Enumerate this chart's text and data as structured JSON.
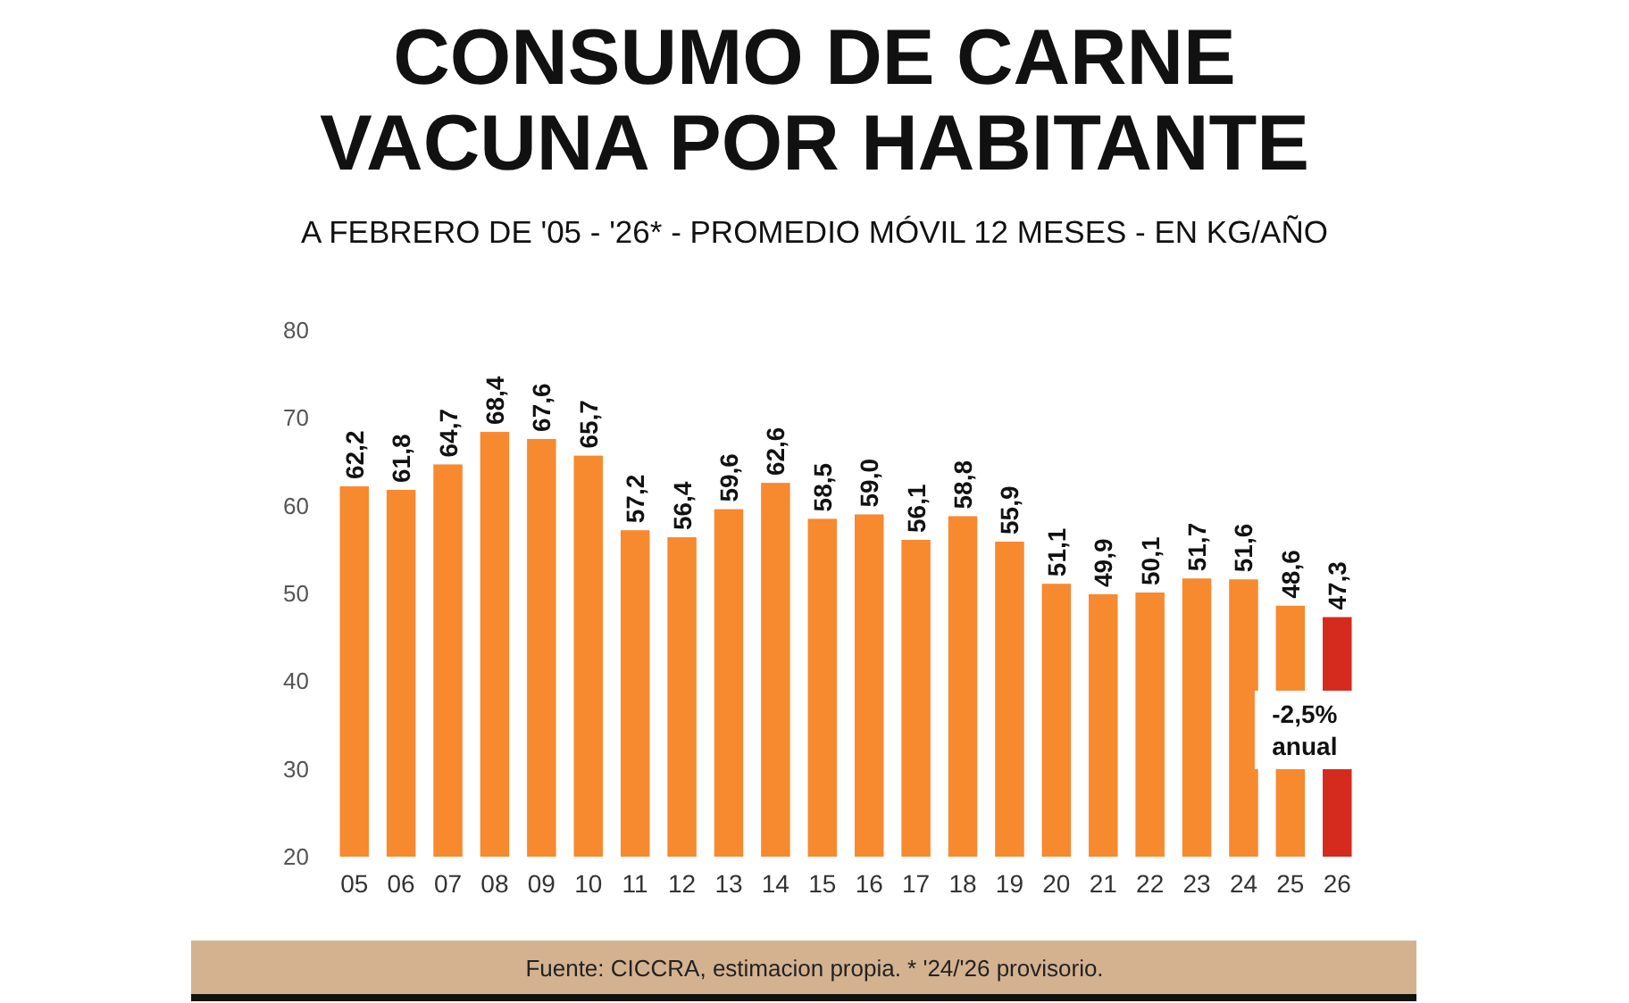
{
  "chart_data": {
    "type": "bar",
    "title": "CONSUMO DE CARNE\nVACUNA POR HABITANTE",
    "subtitle": "A FEBRERO DE '05 - '26* - PROMEDIO MÓVIL 12 MESES - EN KG/AÑO",
    "categories": [
      "05",
      "06",
      "07",
      "08",
      "09",
      "10",
      "11",
      "12",
      "13",
      "14",
      "15",
      "16",
      "17",
      "18",
      "19",
      "20",
      "21",
      "22",
      "23",
      "24",
      "25",
      "26"
    ],
    "values": [
      62.2,
      61.8,
      64.7,
      68.4,
      67.6,
      65.7,
      57.2,
      56.4,
      59.6,
      62.6,
      58.5,
      59.0,
      56.1,
      58.8,
      55.9,
      51.1,
      49.9,
      50.1,
      51.7,
      51.6,
      48.6,
      47.3
    ],
    "value_labels": [
      "62,2",
      "61,8",
      "64,7",
      "68,4",
      "67,6",
      "65,7",
      "57,2",
      "56,4",
      "59,6",
      "62,6",
      "58,5",
      "59,0",
      "56,1",
      "58,8",
      "55,9",
      "51,1",
      "49,9",
      "50,1",
      "51,7",
      "51,6",
      "48,6",
      "47,3"
    ],
    "colors": [
      "#f7892f",
      "#f7892f",
      "#f7892f",
      "#f7892f",
      "#f7892f",
      "#f7892f",
      "#f7892f",
      "#f7892f",
      "#f7892f",
      "#f7892f",
      "#f7892f",
      "#f7892f",
      "#f7892f",
      "#f7892f",
      "#f7892f",
      "#f7892f",
      "#f7892f",
      "#f7892f",
      "#f7892f",
      "#f7892f",
      "#f7892f",
      "#d52b1e"
    ],
    "ylim": [
      20,
      80
    ],
    "yticks": [
      20,
      30,
      40,
      50,
      60,
      70,
      80
    ],
    "grid": false,
    "annotations": [
      "-2,5%\nanual",
      "Fuente: CICCRA, estimacion propia. * '24/'26 provisorio."
    ]
  }
}
